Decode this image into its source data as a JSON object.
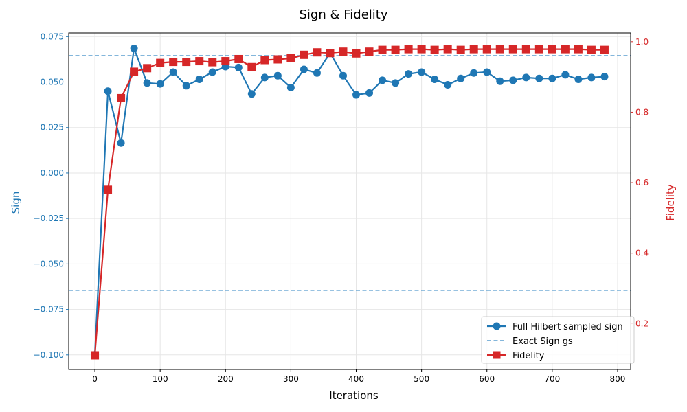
{
  "chart_data": {
    "type": "line",
    "title": "Sign & Fidelity",
    "xlabel": "Iterations",
    "ylabel_left": "Sign",
    "ylabel_right": "Fidelity",
    "xlim": [
      -40,
      820
    ],
    "ylim_left": [
      -0.108,
      0.077
    ],
    "ylim_right": [
      0.07,
      1.025
    ],
    "xticks": [
      0,
      100,
      200,
      300,
      400,
      500,
      600,
      700,
      800
    ],
    "yticks_left": [
      -0.1,
      -0.075,
      -0.05,
      -0.025,
      0.0,
      0.025,
      0.05,
      0.075
    ],
    "yticks_left_labels": [
      "−0.100",
      "−0.075",
      "−0.050",
      "−0.025",
      "0.000",
      "0.025",
      "0.050",
      "0.075"
    ],
    "yticks_right": [
      0.2,
      0.4,
      0.6,
      0.8,
      1.0
    ],
    "yticks_right_labels": [
      "0.2",
      "0.4",
      "0.6",
      "0.8",
      "1.0"
    ],
    "grid": true,
    "legend_position": "lower-right",
    "colors": {
      "sign": "#1f77b4",
      "exact": "#5a9ecf",
      "fidelity": "#d62728"
    },
    "series": [
      {
        "name": "Full Hilbert sampled sign",
        "axis": "left",
        "marker": "circle",
        "x": [
          0,
          20,
          40,
          60,
          80,
          100,
          120,
          140,
          160,
          180,
          200,
          220,
          240,
          260,
          280,
          300,
          320,
          340,
          360,
          380,
          400,
          420,
          440,
          460,
          480,
          500,
          520,
          540,
          560,
          580,
          600,
          620,
          640,
          660,
          680,
          700,
          720,
          740,
          760,
          780
        ],
        "values": [
          -0.1,
          0.045,
          0.0165,
          0.0685,
          0.0495,
          0.049,
          0.0555,
          0.048,
          0.0515,
          0.0555,
          0.0585,
          0.058,
          0.0435,
          0.0525,
          0.0535,
          0.047,
          0.057,
          0.055,
          0.066,
          0.0535,
          0.043,
          0.044,
          0.051,
          0.0495,
          0.0545,
          0.0555,
          0.0515,
          0.0485,
          0.052,
          0.055,
          0.0555,
          0.0505,
          0.051,
          0.0525,
          0.052,
          0.052,
          0.054,
          0.0515,
          0.0525,
          0.053
        ]
      },
      {
        "name": "Exact Sign gs",
        "axis": "left",
        "style": "dashed-horizontal",
        "values": [
          0.0645,
          -0.0645
        ]
      },
      {
        "name": "Fidelity",
        "axis": "right",
        "marker": "square",
        "x": [
          0,
          20,
          40,
          60,
          80,
          100,
          120,
          140,
          160,
          180,
          200,
          220,
          240,
          260,
          280,
          300,
          320,
          340,
          360,
          380,
          400,
          420,
          440,
          460,
          480,
          500,
          520,
          540,
          560,
          580,
          600,
          620,
          640,
          660,
          680,
          700,
          720,
          740,
          760,
          780
        ],
        "values": [
          0.11,
          0.58,
          0.84,
          0.915,
          0.925,
          0.94,
          0.943,
          0.943,
          0.945,
          0.942,
          0.945,
          0.951,
          0.928,
          0.948,
          0.95,
          0.953,
          0.963,
          0.97,
          0.968,
          0.972,
          0.967,
          0.972,
          0.977,
          0.977,
          0.979,
          0.979,
          0.977,
          0.979,
          0.977,
          0.979,
          0.979,
          0.979,
          0.979,
          0.979,
          0.979,
          0.979,
          0.979,
          0.979,
          0.977,
          0.977
        ]
      }
    ]
  }
}
